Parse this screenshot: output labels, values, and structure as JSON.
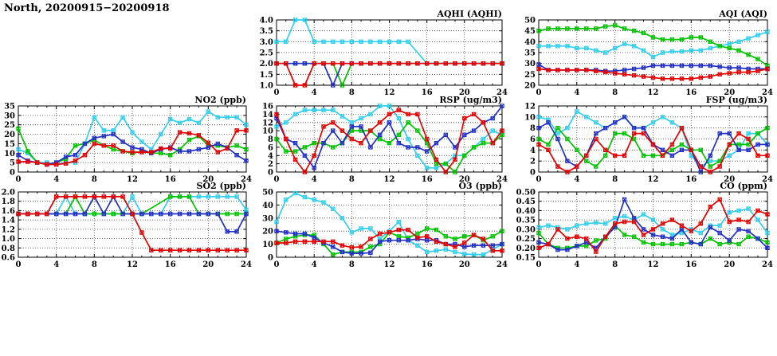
{
  "page_title": "North, 20200915−20200918",
  "colors": {
    "red": "#e60000",
    "green": "#00c400",
    "blue": "#2230c8",
    "cyan": "#33cfee",
    "axis": "#000000",
    "grid": "#444444",
    "background": "#ffffff"
  },
  "chart_data": [
    {
      "id": "aqhi",
      "type": "line",
      "title": "AQHI (AQHI)",
      "xlim": [
        0,
        24
      ],
      "xtick": 4,
      "xminor": 1,
      "ylim": [
        1.0,
        4.0
      ],
      "ytick": 0.5,
      "y_decimals": 1,
      "series": [
        {
          "color": "cyan",
          "values": [
            3,
            3,
            4,
            4,
            3,
            3,
            3,
            3,
            3,
            3,
            3,
            3,
            3,
            3,
            3,
            null,
            2,
            2,
            2,
            2,
            2,
            2,
            2,
            2,
            2
          ]
        },
        {
          "color": "green",
          "values": [
            2,
            2,
            2,
            2,
            2,
            2,
            2,
            1,
            2,
            2,
            2,
            2,
            2,
            2,
            2,
            2,
            2,
            2,
            2,
            2,
            2,
            2,
            2,
            2,
            2
          ]
        },
        {
          "color": "blue",
          "values": [
            2,
            2,
            2,
            2,
            2,
            2,
            1,
            2,
            2,
            2,
            2,
            2,
            2,
            2,
            2,
            2,
            2,
            2,
            2,
            2,
            2,
            2,
            2,
            2,
            2
          ]
        },
        {
          "color": "red",
          "values": [
            2,
            2,
            1,
            1,
            2,
            2,
            2,
            2,
            2,
            2,
            2,
            2,
            2,
            2,
            2,
            2,
            2,
            2,
            2,
            2,
            2,
            2,
            2,
            2,
            2
          ]
        }
      ]
    },
    {
      "id": "aqi",
      "type": "line",
      "title": "AQI (AQI)",
      "xlim": [
        0,
        24
      ],
      "xtick": 4,
      "xminor": 1,
      "ylim": [
        20,
        50
      ],
      "ytick": 5,
      "y_decimals": 0,
      "series": [
        {
          "color": "cyan",
          "values": [
            38,
            38,
            38,
            38,
            37,
            37,
            36,
            35,
            37,
            39,
            38,
            36,
            33,
            35,
            35.5,
            35.5,
            36,
            36,
            37,
            38,
            39,
            40,
            41.5,
            43,
            44.5
          ]
        },
        {
          "color": "green",
          "values": [
            45,
            46,
            46,
            46,
            46,
            46,
            46,
            47,
            47.5,
            46,
            45,
            44,
            42,
            41,
            41,
            41,
            42,
            42,
            40,
            38,
            37,
            36,
            34,
            32,
            29
          ]
        },
        {
          "color": "blue",
          "values": [
            29.5,
            27,
            27,
            27,
            27,
            27,
            27,
            26.5,
            26.5,
            27,
            27.5,
            28,
            29,
            29,
            29,
            29,
            29,
            29,
            29,
            28.5,
            28,
            28,
            27.5,
            27.5,
            27.5
          ]
        },
        {
          "color": "red",
          "values": [
            27.5,
            27,
            27,
            27,
            27,
            27,
            26.5,
            26,
            25.5,
            25,
            24.5,
            24,
            23.5,
            23,
            23,
            23,
            23,
            23.5,
            24,
            25,
            25.5,
            26,
            26,
            26.5,
            27.5
          ]
        }
      ]
    },
    {
      "id": "no2",
      "type": "line",
      "title": "NO2 (ppb)",
      "xlim": [
        0,
        24
      ],
      "xtick": 4,
      "xminor": 1,
      "ylim": [
        0,
        35
      ],
      "ytick": 5,
      "y_decimals": 0,
      "series": [
        {
          "color": "cyan",
          "values": [
            12,
            10,
            5,
            5,
            4,
            5,
            5,
            15,
            29,
            22,
            22,
            29,
            21,
            16,
            12,
            20,
            28,
            26,
            28,
            26,
            32,
            29,
            29,
            29,
            25
          ]
        },
        {
          "color": "green",
          "values": [
            23,
            11,
            5,
            4,
            5,
            7,
            14,
            15,
            17,
            14,
            12,
            11,
            10,
            11,
            10,
            10,
            9,
            12,
            17,
            19,
            14,
            14,
            13,
            14,
            12
          ]
        },
        {
          "color": "blue",
          "values": [
            9,
            6,
            5,
            4,
            5,
            8,
            9,
            15,
            18,
            19,
            20,
            16,
            13,
            12,
            10,
            12,
            13,
            11,
            11,
            12,
            13,
            15,
            13,
            9,
            6
          ]
        },
        {
          "color": "red",
          "values": [
            5.5,
            5.5,
            5,
            4,
            4,
            4.5,
            6,
            9,
            15,
            14,
            14,
            11,
            10.5,
            10.5,
            10.5,
            12.5,
            12.5,
            21,
            20.5,
            19.5,
            15.5,
            10.5,
            12.5,
            22,
            22
          ]
        }
      ]
    },
    {
      "id": "rsp",
      "type": "line",
      "title": "RSP (ug/m3)",
      "xlim": [
        0,
        24
      ],
      "xtick": 4,
      "xminor": 1,
      "ylim": [
        0,
        16
      ],
      "ytick": 2,
      "y_decimals": 0,
      "series": [
        {
          "color": "cyan",
          "values": [
            11,
            12,
            14,
            15,
            15,
            15,
            15,
            13.5,
            12,
            13,
            14,
            16,
            16,
            13,
            8,
            4,
            1,
            1,
            2,
            4,
            4,
            6,
            8,
            10,
            9
          ]
        },
        {
          "color": "green",
          "values": [
            8,
            5,
            5,
            6,
            7,
            7,
            6,
            7,
            10,
            10,
            10,
            8,
            7,
            9,
            12,
            10,
            7,
            2,
            2,
            0,
            4,
            6,
            7,
            7,
            9
          ]
        },
        {
          "color": "blue",
          "values": [
            13,
            8,
            7,
            4,
            1,
            7,
            10,
            7,
            11,
            11,
            6,
            9,
            12,
            7,
            6,
            6,
            5,
            7,
            9,
            6,
            9,
            10,
            12,
            13,
            16
          ]
        },
        {
          "color": "red",
          "values": [
            14,
            8,
            3,
            0,
            4,
            11,
            12,
            10,
            8,
            7,
            10,
            12,
            14,
            15,
            14,
            14,
            8,
            3,
            0,
            3,
            13,
            14,
            12,
            7,
            10
          ]
        }
      ]
    },
    {
      "id": "fsp",
      "type": "line",
      "title": "FSP (ug/m3)",
      "xlim": [
        0,
        24
      ],
      "xtick": 4,
      "xminor": 1,
      "ylim": [
        0,
        12
      ],
      "ytick": 2,
      "y_decimals": 0,
      "series": [
        {
          "color": "cyan",
          "values": [
            10,
            9.5,
            7,
            8,
            11,
            10,
            9,
            8,
            9,
            10,
            8,
            8,
            9,
            10,
            9,
            8,
            3,
            1,
            2,
            2,
            3,
            4,
            7,
            7,
            5
          ]
        },
        {
          "color": "green",
          "values": [
            6,
            5,
            8,
            6,
            4,
            2,
            1,
            3,
            7,
            7,
            6,
            3,
            3,
            3,
            4,
            5,
            4,
            4,
            1,
            2,
            5,
            5,
            5,
            7,
            8
          ]
        },
        {
          "color": "blue",
          "values": [
            8,
            9,
            6,
            2,
            1,
            3,
            7,
            8,
            9,
            10,
            8,
            8,
            5,
            4,
            3,
            4,
            4,
            0,
            3,
            7,
            7,
            4,
            4,
            5,
            5
          ]
        },
        {
          "color": "red",
          "values": [
            5,
            4,
            1,
            0,
            1,
            3,
            6,
            4,
            3,
            3,
            7,
            7,
            5,
            3,
            5,
            8,
            4,
            1,
            0,
            1,
            5,
            7,
            6,
            3,
            3
          ]
        }
      ]
    },
    {
      "id": "so2",
      "type": "line",
      "title": "SO2 (ppb)",
      "xlim": [
        0,
        24
      ],
      "xtick": 4,
      "xminor": 1,
      "ylim": [
        0.6,
        2.0
      ],
      "ytick": 0.2,
      "y_decimals": 1,
      "series": [
        {
          "color": "cyan",
          "values": [
            1.53,
            1.53,
            1.53,
            1.53,
            1.53,
            1.9,
            1.53,
            1.53,
            1.53,
            1.53,
            1.53,
            1.53,
            1.9,
            1.53,
            1.53,
            1.53,
            1.9,
            1.9,
            1.9,
            1.9,
            1.9,
            1.9,
            1.9,
            1.9,
            1.62
          ]
        },
        {
          "color": "green",
          "values": [
            1.53,
            1.53,
            1.53,
            1.53,
            1.53,
            1.53,
            1.9,
            1.53,
            1.53,
            1.53,
            1.53,
            1.53,
            1.53,
            1.53,
            null,
            null,
            1.9,
            1.9,
            1.9,
            1.53,
            1.53,
            1.53,
            1.53,
            1.53,
            1.53
          ]
        },
        {
          "color": "blue",
          "values": [
            1.53,
            1.53,
            1.53,
            1.53,
            1.53,
            1.53,
            1.53,
            1.53,
            1.9,
            1.53,
            1.9,
            1.53,
            1.53,
            1.53,
            1.53,
            1.53,
            1.53,
            1.53,
            1.53,
            1.53,
            1.53,
            1.53,
            1.15,
            1.15,
            1.53
          ]
        },
        {
          "color": "red",
          "values": [
            1.53,
            1.53,
            1.53,
            1.53,
            1.9,
            1.9,
            1.9,
            1.9,
            1.9,
            1.9,
            1.9,
            1.9,
            1.53,
            1.13,
            0.75,
            0.75,
            0.75,
            0.75,
            0.75,
            0.75,
            0.75,
            0.75,
            0.75,
            0.75,
            0.75
          ]
        }
      ]
    },
    {
      "id": "o3",
      "type": "line",
      "title": "O3 (ppb)",
      "xlim": [
        0,
        24
      ],
      "xtick": 4,
      "xminor": 1,
      "ylim": [
        0,
        50
      ],
      "ytick": 10,
      "y_decimals": 0,
      "series": [
        {
          "color": "cyan",
          "values": [
            27,
            44,
            49,
            46,
            44,
            42,
            37,
            30,
            19,
            22,
            22,
            14,
            20,
            27,
            13,
            9,
            4,
            5,
            6,
            4,
            2.5,
            2,
            2,
            6,
            10
          ]
        },
        {
          "color": "green",
          "values": [
            11,
            14,
            16,
            17,
            17,
            10,
            2,
            4,
            4,
            4,
            8,
            10,
            19,
            16,
            15,
            18,
            22,
            21,
            16,
            14,
            16,
            17,
            13,
            16,
            20
          ]
        },
        {
          "color": "blue",
          "values": [
            20,
            19,
            18,
            18,
            15,
            11,
            8,
            4,
            3,
            3,
            3.5,
            12,
            13,
            13,
            13,
            14,
            13,
            13,
            10,
            10,
            8,
            9,
            9,
            9,
            10
          ]
        },
        {
          "color": "red",
          "values": [
            11,
            11,
            12,
            12,
            12,
            12,
            12,
            9,
            7.5,
            8,
            14,
            18,
            19,
            21,
            21,
            15,
            16,
            12,
            10,
            8,
            11,
            17,
            14,
            5,
            5
          ]
        }
      ]
    },
    {
      "id": "co",
      "type": "line",
      "title": "CO (ppm)",
      "xlim": [
        0,
        24
      ],
      "xtick": 4,
      "xminor": 1,
      "ylim": [
        0.15,
        0.5
      ],
      "ytick": 0.05,
      "y_decimals": 2,
      "series": [
        {
          "color": "cyan",
          "values": [
            0.31,
            0.32,
            0.31,
            0.3,
            0.32,
            0.33,
            0.335,
            0.33,
            0.36,
            0.37,
            0.35,
            0.38,
            0.35,
            0.3,
            0.27,
            0.28,
            0.3,
            0.28,
            0.32,
            0.32,
            0.39,
            0.4,
            0.41,
            0.35,
            0.28
          ]
        },
        {
          "color": "green",
          "values": [
            0.28,
            0.22,
            0.2,
            0.2,
            0.21,
            0.21,
            0.24,
            0.25,
            0.32,
            0.27,
            0.26,
            0.23,
            0.22,
            0.22,
            0.22,
            0.22,
            0.23,
            0.22,
            0.25,
            0.22,
            0.23,
            0.22,
            0.26,
            0.25,
            0.23
          ]
        },
        {
          "color": "blue",
          "values": [
            0.23,
            0.22,
            0.19,
            0.19,
            0.21,
            0.23,
            0.2,
            0.26,
            0.31,
            0.46,
            0.36,
            0.3,
            0.27,
            0.26,
            0.25,
            0.3,
            0.23,
            0.22,
            0.31,
            0.28,
            0.24,
            0.3,
            0.29,
            0.25,
            0.2
          ]
        },
        {
          "color": "red",
          "values": [
            0.2,
            0.22,
            0.3,
            0.25,
            0.26,
            0.25,
            0.18,
            0.26,
            0.33,
            0.34,
            0.34,
            0.27,
            0.3,
            0.33,
            0.35,
            0.32,
            0.29,
            0.33,
            0.42,
            0.46,
            0.34,
            0.35,
            0.34,
            0.4,
            0.38
          ]
        }
      ]
    }
  ]
}
